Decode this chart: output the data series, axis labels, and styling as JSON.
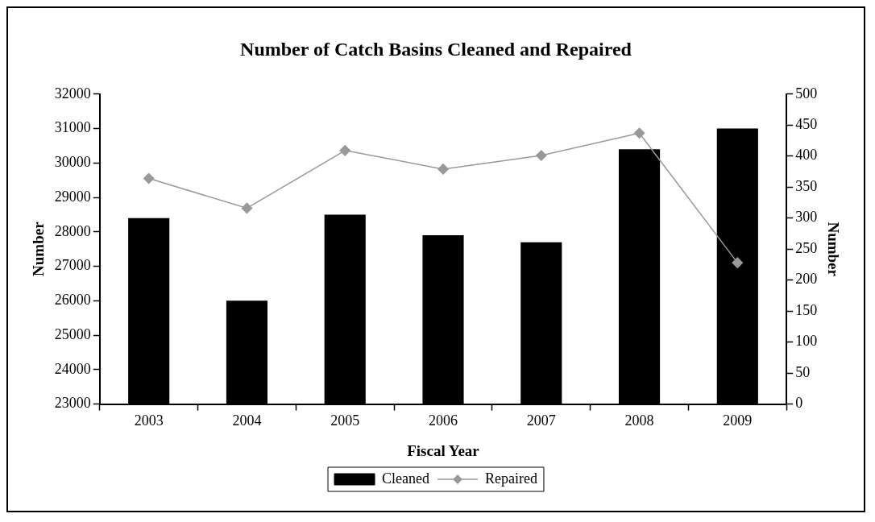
{
  "chart_data": {
    "type": "bar",
    "title": "Number of Catch Basins Cleaned and Repaired",
    "xlabel": "Fiscal Year",
    "ylabel": "Number",
    "y2label": "Number",
    "categories": [
      "2003",
      "2004",
      "2005",
      "2006",
      "2007",
      "2008",
      "2009"
    ],
    "series": [
      {
        "name": "Cleaned",
        "color": "#000000",
        "values": [
          28400,
          26000,
          28500,
          27900,
          27700,
          30400,
          31000
        ]
      },
      {
        "name": "Repaired",
        "type": "line",
        "axis": "y2",
        "color": "#999999",
        "marker": "diamond",
        "values": [
          364,
          316,
          409,
          379,
          401,
          437,
          228
        ]
      }
    ],
    "ylim": [
      23000,
      32000
    ],
    "yticks": [
      23000,
      24000,
      25000,
      26000,
      27000,
      28000,
      29000,
      30000,
      31000,
      32000
    ],
    "y2lim": [
      0,
      500
    ],
    "y2ticks": [
      0,
      50,
      100,
      150,
      200,
      250,
      300,
      350,
      400,
      450,
      500
    ],
    "grid": false,
    "legend": "bottom"
  }
}
